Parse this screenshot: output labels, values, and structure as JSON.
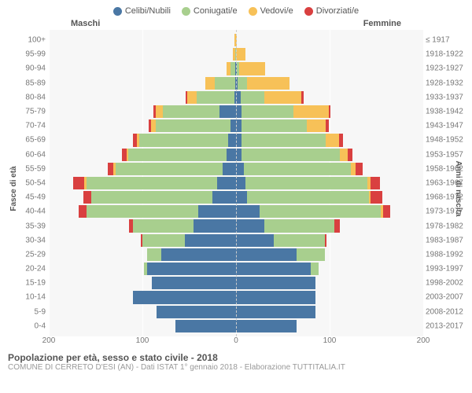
{
  "legend": [
    {
      "label": "Celibi/Nubili",
      "color": "#4a77a4"
    },
    {
      "label": "Coniugati/e",
      "color": "#a8cf8e"
    },
    {
      "label": "Vedovi/e",
      "color": "#f7c158"
    },
    {
      "label": "Divorziati/e",
      "color": "#d94040"
    }
  ],
  "header_left": "Maschi",
  "header_right": "Femmine",
  "y_left_title": "Fasce di età",
  "y_right_title": "Anni di nascita",
  "title": "Popolazione per età, sesso e stato civile - 2018",
  "subtitle": "COMUNE DI CERRETO D'ESI (AN) - Dati ISTAT 1° gennaio 2018 - Elaborazione TUTTITALIA.IT",
  "x_max": 200,
  "x_ticks": [
    -200,
    -100,
    0,
    100,
    200
  ],
  "x_tick_labels": [
    "200",
    "100",
    "0",
    "100",
    "200"
  ],
  "background": "#f7f7f7",
  "grid_color": "#ffffff",
  "colors": {
    "single": "#4a77a4",
    "married": "#a8cf8e",
    "widowed": "#f7c158",
    "divorced": "#d94040"
  },
  "rows": [
    {
      "age": "100+",
      "year": "≤ 1917",
      "m": {
        "s": 0,
        "c": 0,
        "v": 2,
        "d": 0
      },
      "f": {
        "s": 0,
        "c": 0,
        "v": 1,
        "d": 0
      }
    },
    {
      "age": "95-99",
      "year": "1918-1922",
      "m": {
        "s": 0,
        "c": 1,
        "v": 2,
        "d": 0
      },
      "f": {
        "s": 0,
        "c": 0,
        "v": 10,
        "d": 0
      }
    },
    {
      "age": "90-94",
      "year": "1923-1927",
      "m": {
        "s": 1,
        "c": 5,
        "v": 4,
        "d": 0
      },
      "f": {
        "s": 1,
        "c": 2,
        "v": 28,
        "d": 0
      }
    },
    {
      "age": "85-89",
      "year": "1928-1932",
      "m": {
        "s": 1,
        "c": 22,
        "v": 10,
        "d": 0
      },
      "f": {
        "s": 2,
        "c": 10,
        "v": 45,
        "d": 0
      }
    },
    {
      "age": "80-84",
      "year": "1933-1937",
      "m": {
        "s": 2,
        "c": 40,
        "v": 10,
        "d": 2
      },
      "f": {
        "s": 5,
        "c": 25,
        "v": 40,
        "d": 2
      }
    },
    {
      "age": "75-79",
      "year": "1938-1942",
      "m": {
        "s": 18,
        "c": 60,
        "v": 8,
        "d": 2
      },
      "f": {
        "s": 6,
        "c": 55,
        "v": 38,
        "d": 2
      }
    },
    {
      "age": "70-74",
      "year": "1943-1947",
      "m": {
        "s": 6,
        "c": 80,
        "v": 5,
        "d": 2
      },
      "f": {
        "s": 6,
        "c": 70,
        "v": 20,
        "d": 3
      }
    },
    {
      "age": "65-69",
      "year": "1948-1952",
      "m": {
        "s": 8,
        "c": 95,
        "v": 3,
        "d": 4
      },
      "f": {
        "s": 6,
        "c": 90,
        "v": 14,
        "d": 4
      }
    },
    {
      "age": "60-64",
      "year": "1953-1957",
      "m": {
        "s": 10,
        "c": 105,
        "v": 2,
        "d": 5
      },
      "f": {
        "s": 6,
        "c": 105,
        "v": 8,
        "d": 5
      }
    },
    {
      "age": "55-59",
      "year": "1958-1962",
      "m": {
        "s": 14,
        "c": 115,
        "v": 2,
        "d": 6
      },
      "f": {
        "s": 8,
        "c": 115,
        "v": 5,
        "d": 7
      }
    },
    {
      "age": "50-54",
      "year": "1963-1967",
      "m": {
        "s": 20,
        "c": 140,
        "v": 2,
        "d": 12
      },
      "f": {
        "s": 10,
        "c": 130,
        "v": 4,
        "d": 10
      }
    },
    {
      "age": "45-49",
      "year": "1968-1972",
      "m": {
        "s": 25,
        "c": 130,
        "v": 0,
        "d": 8
      },
      "f": {
        "s": 12,
        "c": 130,
        "v": 2,
        "d": 12
      }
    },
    {
      "age": "40-44",
      "year": "1973-1977",
      "m": {
        "s": 40,
        "c": 120,
        "v": 0,
        "d": 8
      },
      "f": {
        "s": 25,
        "c": 130,
        "v": 2,
        "d": 8
      }
    },
    {
      "age": "35-39",
      "year": "1978-1982",
      "m": {
        "s": 45,
        "c": 65,
        "v": 0,
        "d": 4
      },
      "f": {
        "s": 30,
        "c": 75,
        "v": 0,
        "d": 6
      }
    },
    {
      "age": "30-34",
      "year": "1983-1987",
      "m": {
        "s": 55,
        "c": 45,
        "v": 0,
        "d": 2
      },
      "f": {
        "s": 40,
        "c": 55,
        "v": 0,
        "d": 2
      }
    },
    {
      "age": "25-29",
      "year": "1988-1992",
      "m": {
        "s": 80,
        "c": 15,
        "v": 0,
        "d": 0
      },
      "f": {
        "s": 65,
        "c": 30,
        "v": 0,
        "d": 0
      }
    },
    {
      "age": "20-24",
      "year": "1993-1997",
      "m": {
        "s": 95,
        "c": 3,
        "v": 0,
        "d": 0
      },
      "f": {
        "s": 80,
        "c": 8,
        "v": 0,
        "d": 0
      }
    },
    {
      "age": "15-19",
      "year": "1998-2002",
      "m": {
        "s": 90,
        "c": 0,
        "v": 0,
        "d": 0
      },
      "f": {
        "s": 85,
        "c": 0,
        "v": 0,
        "d": 0
      }
    },
    {
      "age": "10-14",
      "year": "2003-2007",
      "m": {
        "s": 110,
        "c": 0,
        "v": 0,
        "d": 0
      },
      "f": {
        "s": 85,
        "c": 0,
        "v": 0,
        "d": 0
      }
    },
    {
      "age": "5-9",
      "year": "2008-2012",
      "m": {
        "s": 85,
        "c": 0,
        "v": 0,
        "d": 0
      },
      "f": {
        "s": 85,
        "c": 0,
        "v": 0,
        "d": 0
      }
    },
    {
      "age": "0-4",
      "year": "2013-2017",
      "m": {
        "s": 65,
        "c": 0,
        "v": 0,
        "d": 0
      },
      "f": {
        "s": 65,
        "c": 0,
        "v": 0,
        "d": 0
      }
    }
  ]
}
